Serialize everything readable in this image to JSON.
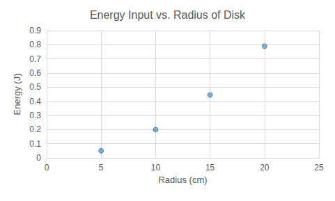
{
  "chart_data": {
    "type": "scatter",
    "title": "Energy Input vs. Radius of Disk",
    "x_label": "Radius (cm)",
    "y_label": "Energy (J)",
    "x": [
      5,
      10,
      15,
      20
    ],
    "values": [
      0.05,
      0.2,
      0.445,
      0.79
    ],
    "color": "#5b9bd5",
    "marker": "circle",
    "xlim": [
      0,
      25
    ],
    "xticks": [
      0,
      5,
      10,
      15,
      20,
      25
    ],
    "ylim": [
      0,
      0.9
    ],
    "yticks": [
      0,
      0.1,
      0.2,
      0.3,
      0.4,
      0.5,
      0.6,
      0.7,
      0.8,
      0.9
    ],
    "grid": true
  }
}
